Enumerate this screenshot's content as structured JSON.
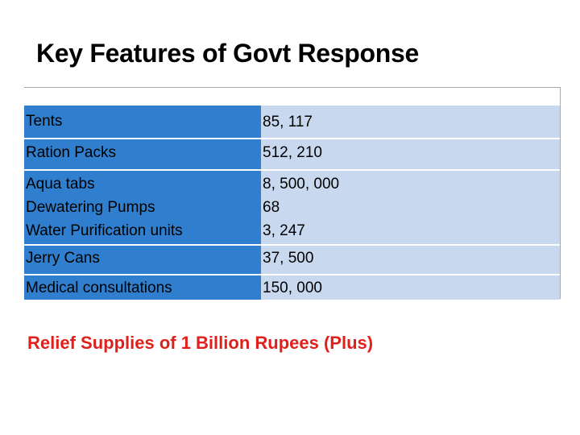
{
  "title": "Key Features of Govt Response",
  "table": {
    "rows": [
      {
        "item": "Tents",
        "value": "85, 117"
      },
      {
        "item": "Ration Packs",
        "value": "512, 210"
      },
      {
        "item": "Aqua tabs",
        "value": "8, 500, 000"
      },
      {
        "item": "Dewatering Pumps",
        "value": "68"
      },
      {
        "item": "Water Purification units",
        "value": "3, 247"
      },
      {
        "item": "Jerry Cans",
        "value": "37, 500"
      },
      {
        "item": "Medical consultations",
        "value": "150, 000"
      }
    ]
  },
  "footer": "Relief Supplies of 1 Billion Rupees (Plus)",
  "colors": {
    "left_column": "#2f7fce",
    "right_column": "#c8d9ef",
    "footer_text": "#e0201b"
  }
}
